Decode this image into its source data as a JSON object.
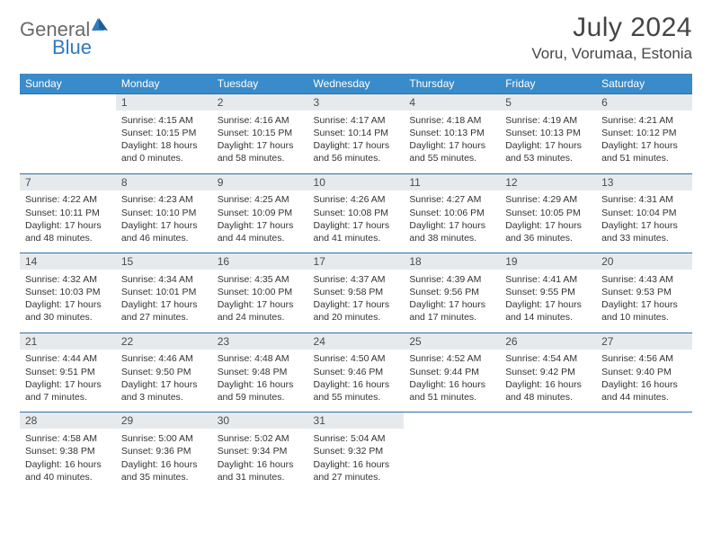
{
  "brand": {
    "name_part1": "General",
    "name_part2": "Blue"
  },
  "title": "July 2024",
  "location": "Voru, Vorumaa, Estonia",
  "day_headers": [
    "Sunday",
    "Monday",
    "Tuesday",
    "Wednesday",
    "Thursday",
    "Friday",
    "Saturday"
  ],
  "colors": {
    "header_bg": "#3a8bc9",
    "header_text": "#ffffff",
    "daynum_bg": "#e7eaed",
    "top_rule": "#2f6fa5",
    "body_text": "#333333",
    "title_text": "#454545",
    "logo_gray": "#6a6a6a",
    "logo_blue": "#2f7bbf",
    "page_bg": "#ffffff"
  },
  "typography": {
    "title_fontsize": 30,
    "location_fontsize": 17,
    "dayhead_fontsize": 12,
    "daynum_fontsize": 12,
    "cell_fontsize": 10.5
  },
  "first_weekday_offset": 1,
  "days": [
    {
      "n": 1,
      "sunrise": "4:15 AM",
      "sunset": "10:15 PM",
      "daylight": "18 hours and 0 minutes."
    },
    {
      "n": 2,
      "sunrise": "4:16 AM",
      "sunset": "10:15 PM",
      "daylight": "17 hours and 58 minutes."
    },
    {
      "n": 3,
      "sunrise": "4:17 AM",
      "sunset": "10:14 PM",
      "daylight": "17 hours and 56 minutes."
    },
    {
      "n": 4,
      "sunrise": "4:18 AM",
      "sunset": "10:13 PM",
      "daylight": "17 hours and 55 minutes."
    },
    {
      "n": 5,
      "sunrise": "4:19 AM",
      "sunset": "10:13 PM",
      "daylight": "17 hours and 53 minutes."
    },
    {
      "n": 6,
      "sunrise": "4:21 AM",
      "sunset": "10:12 PM",
      "daylight": "17 hours and 51 minutes."
    },
    {
      "n": 7,
      "sunrise": "4:22 AM",
      "sunset": "10:11 PM",
      "daylight": "17 hours and 48 minutes."
    },
    {
      "n": 8,
      "sunrise": "4:23 AM",
      "sunset": "10:10 PM",
      "daylight": "17 hours and 46 minutes."
    },
    {
      "n": 9,
      "sunrise": "4:25 AM",
      "sunset": "10:09 PM",
      "daylight": "17 hours and 44 minutes."
    },
    {
      "n": 10,
      "sunrise": "4:26 AM",
      "sunset": "10:08 PM",
      "daylight": "17 hours and 41 minutes."
    },
    {
      "n": 11,
      "sunrise": "4:27 AM",
      "sunset": "10:06 PM",
      "daylight": "17 hours and 38 minutes."
    },
    {
      "n": 12,
      "sunrise": "4:29 AM",
      "sunset": "10:05 PM",
      "daylight": "17 hours and 36 minutes."
    },
    {
      "n": 13,
      "sunrise": "4:31 AM",
      "sunset": "10:04 PM",
      "daylight": "17 hours and 33 minutes."
    },
    {
      "n": 14,
      "sunrise": "4:32 AM",
      "sunset": "10:03 PM",
      "daylight": "17 hours and 30 minutes."
    },
    {
      "n": 15,
      "sunrise": "4:34 AM",
      "sunset": "10:01 PM",
      "daylight": "17 hours and 27 minutes."
    },
    {
      "n": 16,
      "sunrise": "4:35 AM",
      "sunset": "10:00 PM",
      "daylight": "17 hours and 24 minutes."
    },
    {
      "n": 17,
      "sunrise": "4:37 AM",
      "sunset": "9:58 PM",
      "daylight": "17 hours and 20 minutes."
    },
    {
      "n": 18,
      "sunrise": "4:39 AM",
      "sunset": "9:56 PM",
      "daylight": "17 hours and 17 minutes."
    },
    {
      "n": 19,
      "sunrise": "4:41 AM",
      "sunset": "9:55 PM",
      "daylight": "17 hours and 14 minutes."
    },
    {
      "n": 20,
      "sunrise": "4:43 AM",
      "sunset": "9:53 PM",
      "daylight": "17 hours and 10 minutes."
    },
    {
      "n": 21,
      "sunrise": "4:44 AM",
      "sunset": "9:51 PM",
      "daylight": "17 hours and 7 minutes."
    },
    {
      "n": 22,
      "sunrise": "4:46 AM",
      "sunset": "9:50 PM",
      "daylight": "17 hours and 3 minutes."
    },
    {
      "n": 23,
      "sunrise": "4:48 AM",
      "sunset": "9:48 PM",
      "daylight": "16 hours and 59 minutes."
    },
    {
      "n": 24,
      "sunrise": "4:50 AM",
      "sunset": "9:46 PM",
      "daylight": "16 hours and 55 minutes."
    },
    {
      "n": 25,
      "sunrise": "4:52 AM",
      "sunset": "9:44 PM",
      "daylight": "16 hours and 51 minutes."
    },
    {
      "n": 26,
      "sunrise": "4:54 AM",
      "sunset": "9:42 PM",
      "daylight": "16 hours and 48 minutes."
    },
    {
      "n": 27,
      "sunrise": "4:56 AM",
      "sunset": "9:40 PM",
      "daylight": "16 hours and 44 minutes."
    },
    {
      "n": 28,
      "sunrise": "4:58 AM",
      "sunset": "9:38 PM",
      "daylight": "16 hours and 40 minutes."
    },
    {
      "n": 29,
      "sunrise": "5:00 AM",
      "sunset": "9:36 PM",
      "daylight": "16 hours and 35 minutes."
    },
    {
      "n": 30,
      "sunrise": "5:02 AM",
      "sunset": "9:34 PM",
      "daylight": "16 hours and 31 minutes."
    },
    {
      "n": 31,
      "sunrise": "5:04 AM",
      "sunset": "9:32 PM",
      "daylight": "16 hours and 27 minutes."
    }
  ],
  "labels": {
    "sunrise_prefix": "Sunrise: ",
    "sunset_prefix": "Sunset: ",
    "daylight_prefix": "Daylight: "
  }
}
